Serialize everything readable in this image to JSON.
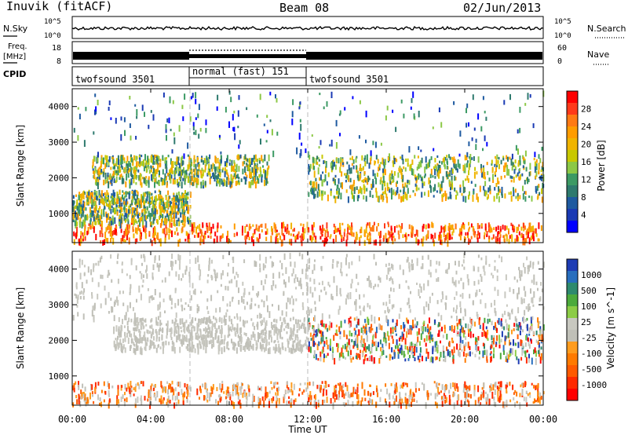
{
  "header": {
    "site": "Inuvik (fitACF)",
    "beam": "Beam 08",
    "date": "02/Jun/2013"
  },
  "panels": {
    "nsky": {
      "left_label": "N.Sky",
      "right_label": "N.Search",
      "left_ticks": [
        "10^5",
        "10^0"
      ],
      "right_ticks": [
        "10^5",
        "10^0"
      ]
    },
    "freq": {
      "left_label_1": "Freq.",
      "left_label_2": "[MHz]",
      "right_label": "Nave",
      "left_ticks": [
        "18",
        "8"
      ],
      "right_ticks": [
        "60",
        "0"
      ]
    },
    "cpid": {
      "label": "CPID",
      "segments": [
        {
          "label": "twofsound 3501",
          "start_hour": 0,
          "end_hour": 6
        },
        {
          "label": "normal (fast) 151",
          "start_hour": 6,
          "end_hour": 12
        },
        {
          "label": "twofsound 3501",
          "start_hour": 12,
          "end_hour": 24
        }
      ]
    }
  },
  "chart_data": [
    {
      "type": "heatmap",
      "name": "power",
      "xlabel": "",
      "ylabel": "Slant Range [km]",
      "xlim": [
        0,
        24
      ],
      "ylim": [
        180,
        4500
      ],
      "yticks": [
        1000,
        2000,
        3000,
        4000
      ],
      "colorbar_label": "Power [dB]",
      "colorbar_ticks": [
        "28",
        "24",
        "20",
        "16",
        "12",
        "8",
        "4"
      ],
      "colorbar_colors": [
        "#ff0000",
        "#ff3a1a",
        "#ff7a14",
        "#ff9c00",
        "#f0b400",
        "#c8c800",
        "#8cc846",
        "#3c9a64",
        "#2e7a6e",
        "#1e5aa0",
        "#1a3ab4",
        "#0000ff"
      ],
      "scatter_regions": [
        {
          "x": [
            0,
            24
          ],
          "y": [
            180,
            700
          ],
          "level": "high"
        },
        {
          "x": [
            0,
            6
          ],
          "y": [
            700,
            1600
          ],
          "level": "mid"
        },
        {
          "x": [
            1,
            10
          ],
          "y": [
            1800,
            2600
          ],
          "level": "mid"
        },
        {
          "x": [
            12,
            24
          ],
          "y": [
            1400,
            2600
          ],
          "level": "mid"
        },
        {
          "x": [
            0,
            24
          ],
          "y": [
            2600,
            4400
          ],
          "level": "low"
        }
      ]
    },
    {
      "type": "heatmap",
      "name": "velocity",
      "xlabel": "Time UT",
      "ylabel": "Slant Range [km]",
      "xlim": [
        0,
        24
      ],
      "ylim": [
        180,
        4500
      ],
      "yticks": [
        1000,
        2000,
        3000,
        4000
      ],
      "xticks": [
        "00:00",
        "04:00",
        "08:00",
        "12:00",
        "16:00",
        "20:00",
        "00:00"
      ],
      "colorbar_label": "Velocity [m s^-1]",
      "colorbar_ticks": [
        "1000",
        "500",
        "100",
        "25",
        "-25",
        "-100",
        "-500",
        "-1000"
      ],
      "colorbar_colors": [
        "#1e3cb4",
        "#286ebe",
        "#2e8a6e",
        "#4caa3c",
        "#8ccc46",
        "#c8c8c0",
        "#c0c0b8",
        "#ff9c1e",
        "#ff7a00",
        "#ff5a00",
        "#ff2a00",
        "#ff0000"
      ],
      "scatter_regions": [
        {
          "x": [
            0,
            24
          ],
          "y": [
            180,
            800
          ],
          "level": "low_velocity"
        },
        {
          "x": [
            2,
            12
          ],
          "y": [
            1700,
            2600
          ],
          "level": "ground"
        },
        {
          "x": [
            12,
            24
          ],
          "y": [
            1400,
            2600
          ],
          "level": "mixed"
        },
        {
          "x": [
            0,
            24
          ],
          "y": [
            2600,
            4400
          ],
          "level": "ground"
        }
      ]
    }
  ]
}
